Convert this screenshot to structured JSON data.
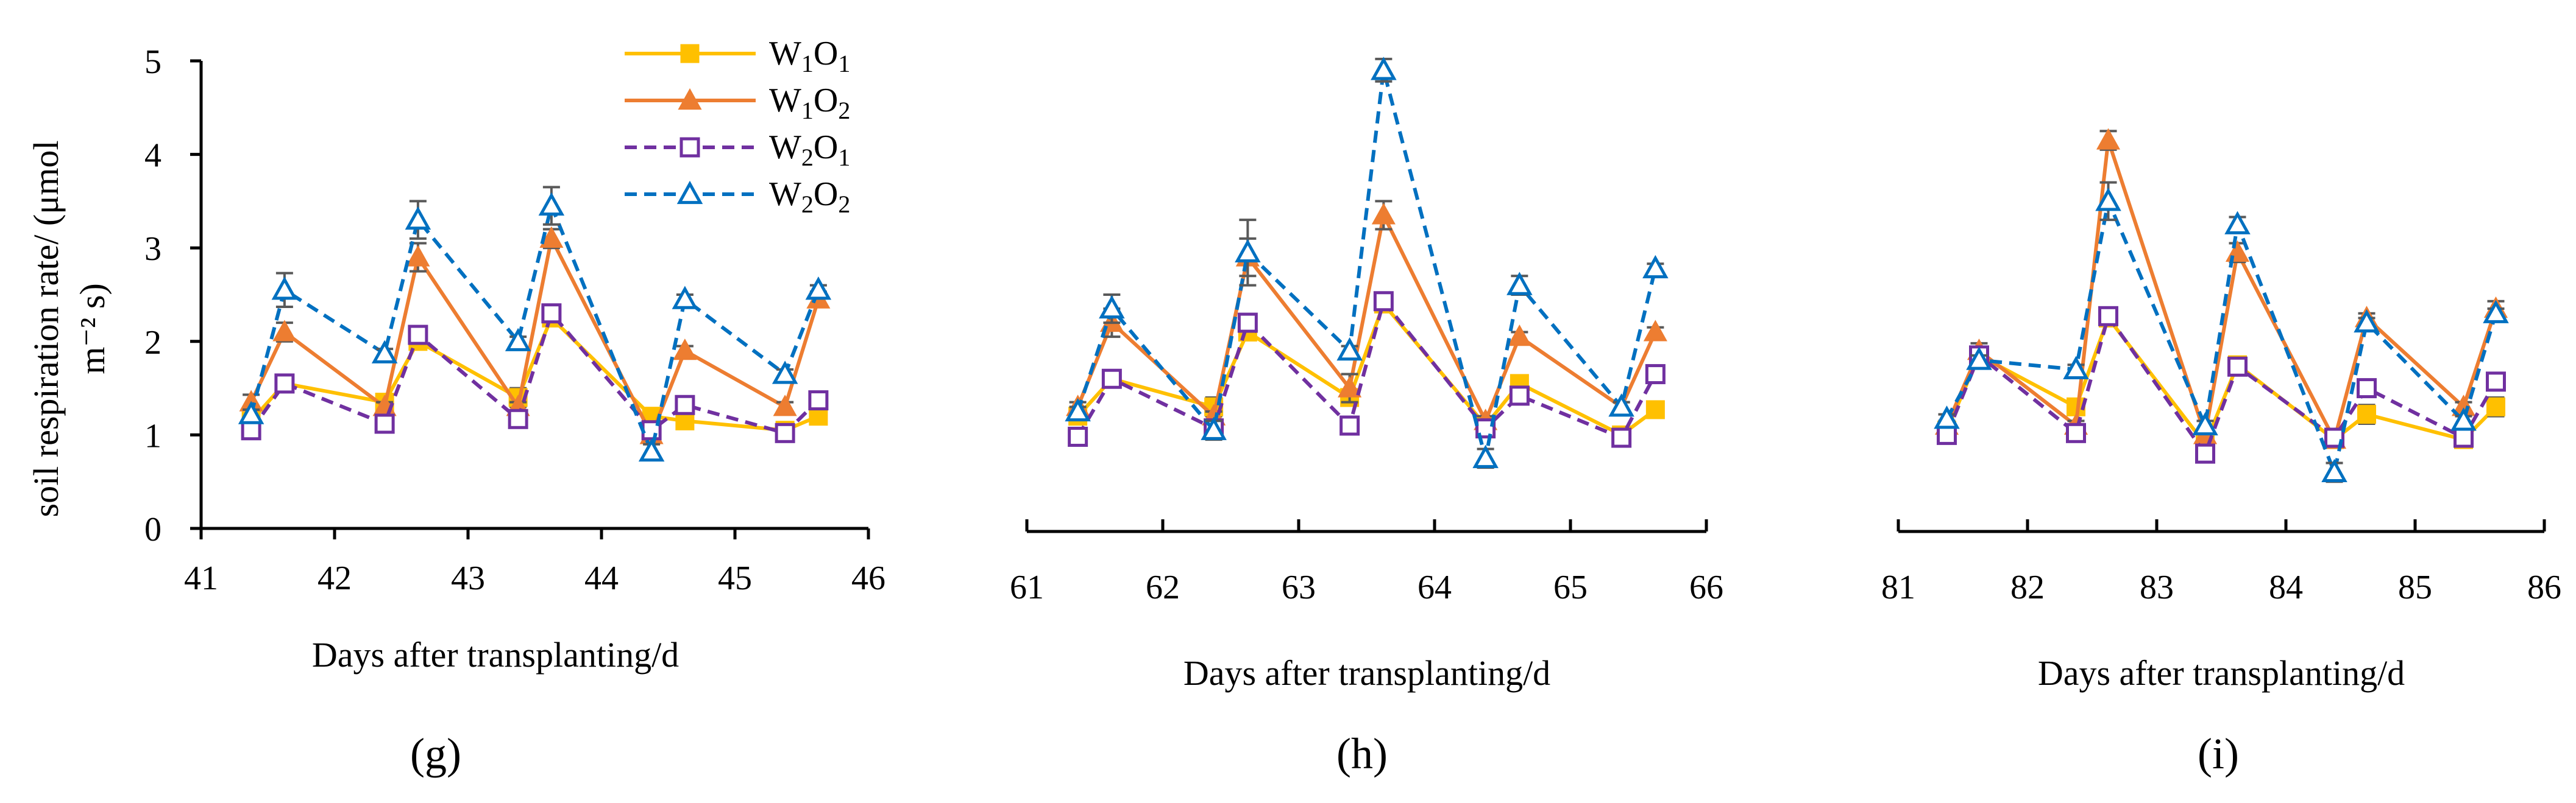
{
  "figure": {
    "ylabel_line1": "soil respiration rate/ (μmol",
    "ylabel_line2": "m⁻² s)",
    "xlabel": "Days after transplanting/d",
    "legend": [
      {
        "key": "W1O1",
        "base": "W",
        "sub1": "1",
        "mid": "O",
        "sub2": "1"
      },
      {
        "key": "W1O2",
        "base": "W",
        "sub1": "1",
        "mid": "O",
        "sub2": "2"
      },
      {
        "key": "W2O1",
        "base": "W",
        "sub1": "2",
        "mid": "O",
        "sub2": "1"
      },
      {
        "key": "W2O2",
        "base": "W",
        "sub1": "2",
        "mid": "O",
        "sub2": "2"
      }
    ],
    "series_style": {
      "W1O1": {
        "color": "#FFC000",
        "marker": "square-filled",
        "dash": "solid"
      },
      "W1O2": {
        "color": "#ED7D31",
        "marker": "triangle-filled",
        "dash": "solid"
      },
      "W2O1": {
        "color": "#7030A0",
        "marker": "square-open",
        "dash": "dashed"
      },
      "W2O2": {
        "color": "#0070C0",
        "marker": "triangle-open",
        "dash": "dashed"
      }
    },
    "error_color": "#595959"
  },
  "chart_data": [
    {
      "type": "line",
      "label": "(g)",
      "xlabel": "Days after transplanting/d",
      "ylabel": "soil respiration rate/ (μmol m⁻² s)",
      "xlim": [
        41,
        46
      ],
      "ylim": [
        0,
        5
      ],
      "xticks": [
        "41",
        "42",
        "43",
        "44",
        "45",
        "46"
      ],
      "yticks": [
        "0",
        "1",
        "2",
        "3",
        "4",
        "5"
      ],
      "show_yaxis": true,
      "x": [
        41.375,
        41.625,
        42.375,
        42.625,
        43.375,
        43.625,
        44.375,
        44.625,
        45.375,
        45.625
      ],
      "series": [
        {
          "name": "W1O1",
          "values": [
            1.15,
            1.55,
            1.35,
            2.0,
            1.4,
            2.25,
            1.2,
            1.15,
            1.05,
            1.2
          ],
          "errors": [
            0.05,
            0.05,
            0.08,
            0.05,
            0.1,
            0.05,
            0.05,
            0.08,
            0.05,
            0.05
          ]
        },
        {
          "name": "W1O2",
          "values": [
            1.35,
            2.1,
            1.3,
            2.9,
            1.3,
            3.1,
            1.0,
            1.9,
            1.3,
            2.45
          ],
          "errors": [
            0.08,
            0.1,
            0.05,
            0.15,
            0.05,
            0.1,
            0.05,
            0.05,
            0.05,
            0.08
          ]
        },
        {
          "name": "W2O1",
          "values": [
            1.05,
            1.55,
            1.12,
            2.07,
            1.17,
            2.3,
            1.05,
            1.32,
            1.02,
            1.37
          ],
          "errors": [
            0.03,
            0.03,
            0.03,
            0.05,
            0.03,
            0.05,
            0.03,
            0.03,
            0.02,
            0.03
          ]
        },
        {
          "name": "W2O2",
          "values": [
            1.22,
            2.55,
            1.87,
            3.3,
            2.0,
            3.45,
            0.82,
            2.45,
            1.65,
            2.55
          ],
          "errors": [
            0.05,
            0.18,
            0.05,
            0.2,
            0.05,
            0.2,
            0.08,
            0.05,
            0.05,
            0.05
          ]
        }
      ]
    },
    {
      "type": "line",
      "label": "(h)",
      "xlabel": "Days after transplanting/d",
      "ylabel": "",
      "xlim": [
        61,
        66
      ],
      "ylim": [
        0,
        5
      ],
      "xticks": [
        "61",
        "62",
        "63",
        "64",
        "65",
        "66"
      ],
      "yticks": [],
      "show_yaxis": false,
      "x": [
        61.375,
        61.625,
        62.375,
        62.625,
        63.375,
        63.625,
        64.375,
        64.625,
        65.375,
        65.625
      ],
      "series": [
        {
          "name": "W1O1",
          "values": [
            1.2,
            1.6,
            1.3,
            2.1,
            1.4,
            2.4,
            1.1,
            1.55,
            1.0,
            1.27
          ],
          "errors": [
            0.05,
            0.05,
            0.1,
            0.05,
            0.05,
            0.05,
            0.05,
            0.05,
            0.05,
            0.05
          ]
        },
        {
          "name": "W1O2",
          "values": [
            1.3,
            2.2,
            1.2,
            2.9,
            1.5,
            3.35,
            1.15,
            2.05,
            1.3,
            2.1
          ],
          "errors": [
            0.05,
            0.15,
            0.05,
            0.2,
            0.15,
            0.15,
            0.05,
            0.05,
            0.05,
            0.05
          ]
        },
        {
          "name": "W2O1",
          "values": [
            0.98,
            1.6,
            1.07,
            2.2,
            1.1,
            2.43,
            1.07,
            1.42,
            0.97,
            1.65
          ],
          "errors": [
            0.03,
            0.03,
            0.03,
            0.05,
            0.03,
            0.05,
            0.03,
            0.05,
            0.03,
            0.05
          ]
        },
        {
          "name": "W2O2",
          "values": [
            1.25,
            2.35,
            1.05,
            2.95,
            1.9,
            4.9,
            0.75,
            2.6,
            1.3,
            2.78
          ],
          "errors": [
            0.05,
            0.15,
            0.1,
            0.35,
            0.05,
            0.12,
            0.1,
            0.1,
            0.05,
            0.05
          ]
        }
      ]
    },
    {
      "type": "line",
      "label": "(i)",
      "xlabel": "Days after transplanting/d",
      "ylabel": "",
      "xlim": [
        81,
        86
      ],
      "ylim": [
        0,
        5
      ],
      "xticks": [
        "81",
        "82",
        "83",
        "84",
        "85",
        "86"
      ],
      "yticks": [],
      "show_yaxis": false,
      "x": [
        81.375,
        81.625,
        82.375,
        82.625,
        83.375,
        83.625,
        84.375,
        84.625,
        85.375,
        85.625
      ],
      "series": [
        {
          "name": "W1O1",
          "values": [
            1.05,
            1.85,
            1.3,
            2.25,
            0.9,
            1.75,
            0.95,
            1.22,
            0.95,
            1.3
          ],
          "errors": [
            0.05,
            0.05,
            0.05,
            0.05,
            0.05,
            0.05,
            0.05,
            0.1,
            0.05,
            0.1
          ]
        },
        {
          "name": "W1O2",
          "values": [
            1.1,
            1.9,
            1.1,
            4.15,
            1.0,
            2.95,
            0.95,
            2.25,
            1.3,
            2.35
          ],
          "errors": [
            0.05,
            0.08,
            0.05,
            0.1,
            0.05,
            0.1,
            0.05,
            0.05,
            0.05,
            0.08
          ]
        },
        {
          "name": "W2O1",
          "values": [
            1.0,
            1.85,
            1.02,
            2.27,
            0.8,
            1.73,
            0.97,
            1.5,
            0.97,
            1.57
          ],
          "errors": [
            0.03,
            0.03,
            0.03,
            0.03,
            0.03,
            0.03,
            0.03,
            0.05,
            0.03,
            0.05
          ]
        },
        {
          "name": "W2O2",
          "values": [
            1.17,
            1.8,
            1.7,
            3.5,
            1.1,
            3.25,
            0.6,
            2.2,
            1.15,
            2.3
          ],
          "errors": [
            0.05,
            0.05,
            0.05,
            0.2,
            0.05,
            0.08,
            0.1,
            0.05,
            0.05,
            0.05
          ]
        }
      ]
    }
  ]
}
